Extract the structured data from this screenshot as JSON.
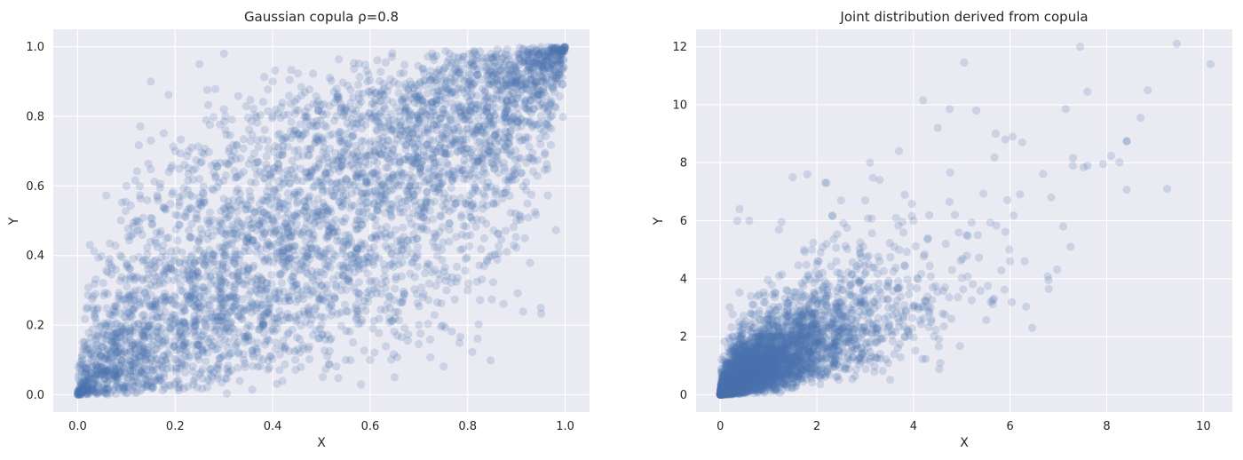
{
  "chart_data": [
    {
      "type": "scatter",
      "title": "Gaussian copula ρ=0.8",
      "xlabel": "X",
      "ylabel": "Y",
      "xlim": [
        -0.05,
        1.05
      ],
      "ylim": [
        -0.05,
        1.05
      ],
      "xticks": [
        "0.0",
        "0.2",
        "0.4",
        "0.6",
        "0.8",
        "1.0"
      ],
      "yticks": [
        "0.0",
        "0.2",
        "0.4",
        "0.6",
        "0.8",
        "1.0"
      ],
      "xtick_values": [
        0,
        0.2,
        0.4,
        0.6,
        0.8,
        1.0
      ],
      "ytick_values": [
        0,
        0.2,
        0.4,
        0.6,
        0.8,
        1.0
      ],
      "grid": true,
      "marker_color": "#4c72b0",
      "marker_alpha": 0.2,
      "series": [
        {
          "points": [
            [
              0.02,
              0.01
            ],
            [
              0.05,
              0.08
            ],
            [
              0.08,
              0.03
            ],
            [
              0.1,
              0.12
            ],
            [
              0.12,
              0.05
            ],
            [
              0.15,
              0.2
            ],
            [
              0.18,
              0.1
            ],
            [
              0.2,
              0.28
            ],
            [
              0.22,
              0.15
            ],
            [
              0.25,
              0.3
            ],
            [
              0.28,
              0.22
            ],
            [
              0.3,
              0.4
            ],
            [
              0.32,
              0.25
            ],
            [
              0.35,
              0.45
            ],
            [
              0.38,
              0.3
            ],
            [
              0.4,
              0.5
            ],
            [
              0.42,
              0.38
            ],
            [
              0.45,
              0.55
            ],
            [
              0.48,
              0.42
            ],
            [
              0.5,
              0.6
            ],
            [
              0.52,
              0.48
            ],
            [
              0.55,
              0.62
            ],
            [
              0.58,
              0.5
            ],
            [
              0.6,
              0.7
            ],
            [
              0.62,
              0.55
            ],
            [
              0.65,
              0.72
            ],
            [
              0.68,
              0.6
            ],
            [
              0.7,
              0.78
            ],
            [
              0.72,
              0.65
            ],
            [
              0.75,
              0.82
            ],
            [
              0.78,
              0.7
            ],
            [
              0.8,
              0.88
            ],
            [
              0.82,
              0.76
            ],
            [
              0.85,
              0.9
            ],
            [
              0.88,
              0.82
            ],
            [
              0.9,
              0.94
            ],
            [
              0.92,
              0.88
            ],
            [
              0.95,
              0.96
            ],
            [
              0.97,
              0.92
            ],
            [
              0.99,
              0.99
            ],
            [
              0.12,
              0.5
            ],
            [
              0.2,
              0.7
            ],
            [
              0.3,
              0.82
            ],
            [
              0.1,
              0.6
            ],
            [
              0.25,
              0.62
            ],
            [
              0.35,
              0.2
            ],
            [
              0.5,
              0.2
            ],
            [
              0.6,
              0.1
            ],
            [
              0.7,
              0.2
            ],
            [
              0.8,
              0.3
            ],
            [
              0.65,
              0.05
            ],
            [
              0.85,
              0.4
            ],
            [
              0.9,
              0.5
            ],
            [
              0.95,
              0.25
            ],
            [
              0.55,
              0.1
            ],
            [
              0.15,
              0.9
            ],
            [
              0.25,
              0.95
            ],
            [
              0.4,
              0.9
            ],
            [
              0.3,
              0.98
            ],
            [
              0.45,
              0.85
            ]
          ]
        }
      ]
    },
    {
      "type": "scatter",
      "title": "Joint distribution derived from copula",
      "xlabel": "X",
      "ylabel": "Y",
      "xlim": [
        -0.5,
        10.6
      ],
      "ylim": [
        -0.6,
        12.6
      ],
      "xticks": [
        "0",
        "2",
        "4",
        "6",
        "8",
        "10"
      ],
      "yticks": [
        "0",
        "2",
        "4",
        "6",
        "8",
        "10",
        "12"
      ],
      "xtick_values": [
        0,
        2,
        4,
        6,
        8,
        10
      ],
      "ytick_values": [
        0,
        2,
        4,
        6,
        8,
        10,
        12
      ],
      "grid": true,
      "marker_color": "#4c72b0",
      "marker_alpha": 0.2,
      "series": [
        {
          "points": [
            [
              9.45,
              12.1
            ],
            [
              10.15,
              11.4
            ],
            [
              7.45,
              12.0
            ],
            [
              5.05,
              11.45
            ],
            [
              7.6,
              10.45
            ],
            [
              8.85,
              10.5
            ],
            [
              8.7,
              9.55
            ],
            [
              9.25,
              7.1
            ],
            [
              4.2,
              10.15
            ],
            [
              4.75,
              9.85
            ],
            [
              5.3,
              9.8
            ],
            [
              7.15,
              9.85
            ],
            [
              6.05,
              8.9
            ],
            [
              6.25,
              8.7
            ],
            [
              7.6,
              7.9
            ],
            [
              7.3,
              7.9
            ],
            [
              6.85,
              6.8
            ],
            [
              7.1,
              5.8
            ],
            [
              7.25,
              5.1
            ],
            [
              6.8,
              3.95
            ],
            [
              5.6,
              3.2
            ],
            [
              6.0,
              4.6
            ],
            [
              6.3,
              4.6
            ],
            [
              5.7,
              9.0
            ],
            [
              5.9,
              8.8
            ],
            [
              4.5,
              9.2
            ],
            [
              3.1,
              8.0
            ],
            [
              3.7,
              8.4
            ],
            [
              3.0,
              6.7
            ],
            [
              3.3,
              7.4
            ],
            [
              0.4,
              6.4
            ],
            [
              0.35,
              6.0
            ],
            [
              0.6,
              6.0
            ],
            [
              1.5,
              7.5
            ],
            [
              1.8,
              7.6
            ],
            [
              2.2,
              7.3
            ],
            [
              2.5,
              6.7
            ],
            [
              4.0,
              6.0
            ],
            [
              4.3,
              5.4
            ],
            [
              5.1,
              5.5
            ],
            [
              4.8,
              4.3
            ],
            [
              4.4,
              3.7
            ],
            [
              4.0,
              3.0
            ],
            [
              4.6,
              2.8
            ],
            [
              3.9,
              2.2
            ],
            [
              3.6,
              1.4
            ],
            [
              2.9,
              1.3
            ],
            [
              2.6,
              0.9
            ],
            [
              2.4,
              0.6
            ],
            [
              3.2,
              1.8
            ],
            [
              2.0,
              4.5
            ],
            [
              2.5,
              4.0
            ],
            [
              2.9,
              4.9
            ],
            [
              3.3,
              4.6
            ],
            [
              3.6,
              5.1
            ],
            [
              2.2,
              3.4
            ],
            [
              2.4,
              2.4
            ],
            [
              2.6,
              2.8
            ],
            [
              3.0,
              3.1
            ],
            [
              1.9,
              2.3
            ]
          ]
        }
      ]
    }
  ]
}
